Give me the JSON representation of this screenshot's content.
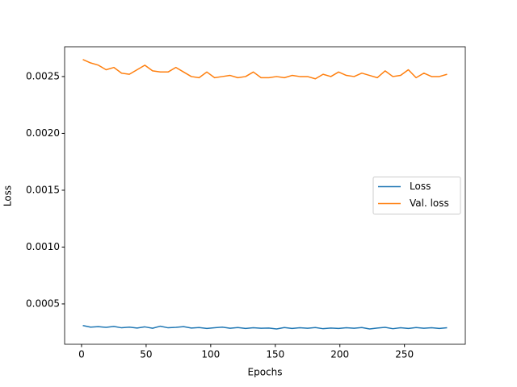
{
  "chart_data": {
    "type": "line",
    "xlabel": "Epochs",
    "ylabel": "Loss",
    "x": [
      1,
      7,
      13,
      19,
      25,
      31,
      37,
      43,
      49,
      55,
      61,
      67,
      73,
      79,
      85,
      91,
      97,
      103,
      109,
      115,
      121,
      127,
      133,
      139,
      145,
      151,
      157,
      163,
      169,
      175,
      181,
      187,
      193,
      199,
      205,
      211,
      217,
      223,
      229,
      235,
      241,
      247,
      253,
      259,
      265,
      271,
      277,
      283
    ],
    "series": [
      {
        "name": "Loss",
        "color": "#1f77b4",
        "values": [
          0.00031,
          0.000296,
          0.0003,
          0.000294,
          0.000302,
          0.00029,
          0.000296,
          0.000288,
          0.000298,
          0.000286,
          0.000304,
          0.00029,
          0.000294,
          0.0003,
          0.000288,
          0.000292,
          0.000284,
          0.00029,
          0.000296,
          0.000286,
          0.000292,
          0.000284,
          0.00029,
          0.000286,
          0.000288,
          0.00028,
          0.000292,
          0.000284,
          0.00029,
          0.000286,
          0.000292,
          0.000282,
          0.000288,
          0.000284,
          0.00029,
          0.000286,
          0.000292,
          0.00028,
          0.000288,
          0.000294,
          0.000282,
          0.00029,
          0.000284,
          0.000292,
          0.000286,
          0.00029,
          0.000284,
          0.00029
        ]
      },
      {
        "name": "Val. loss",
        "color": "#ff7f0e",
        "values": [
          0.00265,
          0.00262,
          0.0026,
          0.00256,
          0.00258,
          0.00253,
          0.00252,
          0.00256,
          0.0026,
          0.00255,
          0.00254,
          0.00254,
          0.00258,
          0.00254,
          0.0025,
          0.00249,
          0.00254,
          0.00249,
          0.0025,
          0.00251,
          0.00249,
          0.0025,
          0.00254,
          0.00249,
          0.00249,
          0.0025,
          0.00249,
          0.00251,
          0.0025,
          0.0025,
          0.00248,
          0.00252,
          0.0025,
          0.00254,
          0.00251,
          0.0025,
          0.00253,
          0.00251,
          0.00249,
          0.00255,
          0.0025,
          0.00251,
          0.00256,
          0.00249,
          0.00253,
          0.0025,
          0.0025,
          0.00252
        ]
      }
    ],
    "xlim": [
      -13.1,
      297.1
    ],
    "xticks": [
      0,
      50,
      100,
      150,
      200,
      250
    ],
    "ylim": [
      0.000145,
      0.002762
    ],
    "yticks": [
      0.0005,
      {
        "value": 0.001,
        "label": "0.0010"
      },
      0.0015,
      {
        "value": 0.002,
        "label": "0.0020"
      },
      0.0025
    ],
    "grid": false,
    "legend": "center right"
  }
}
